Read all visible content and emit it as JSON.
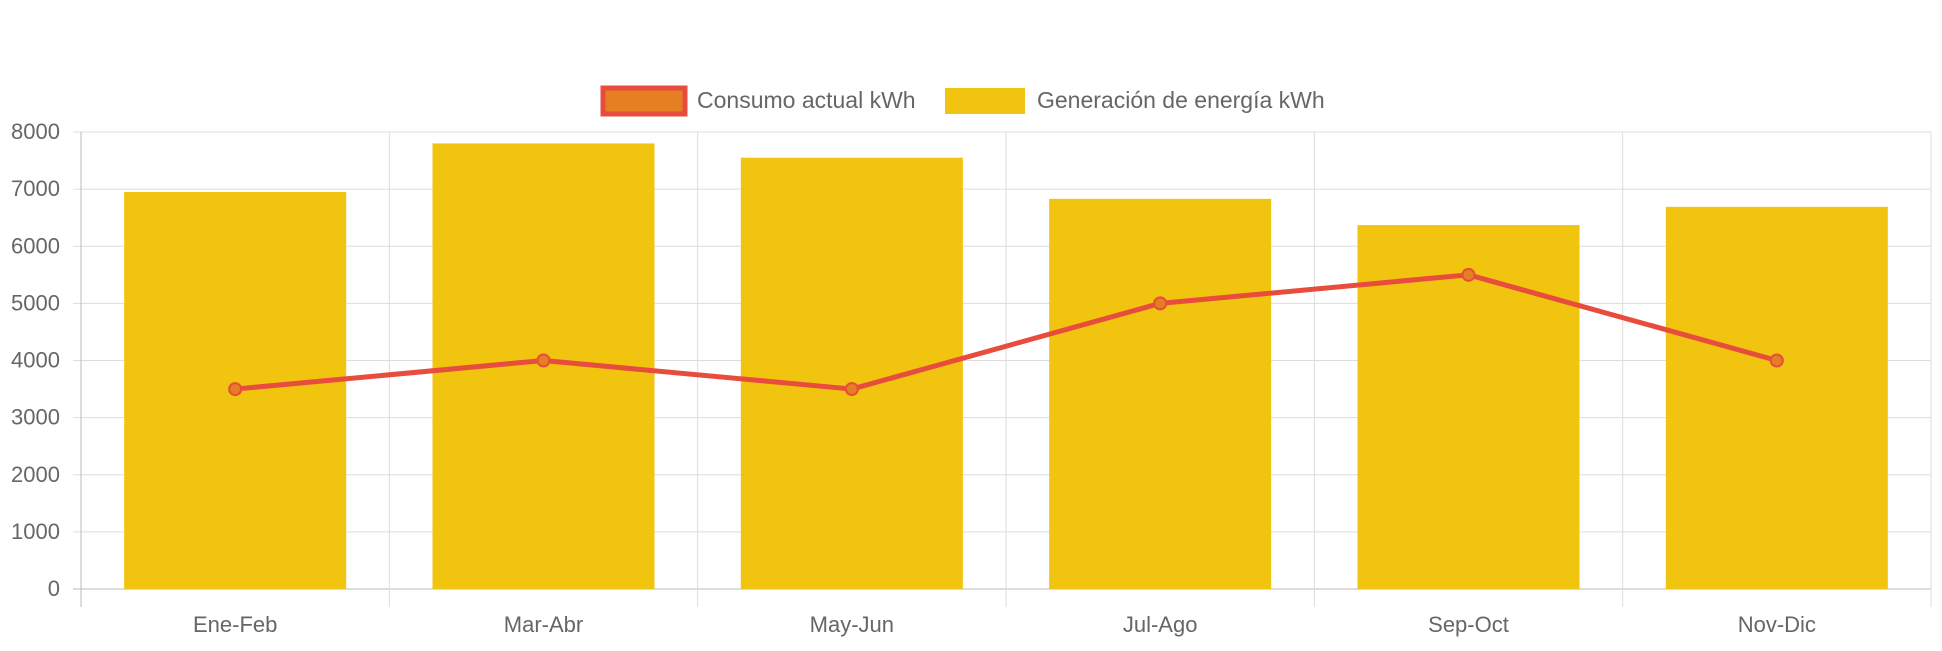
{
  "chart_data": {
    "type": "bar",
    "categories": [
      "Ene-Feb",
      "Mar-Abr",
      "May-Jun",
      "Jul-Ago",
      "Sep-Oct",
      "Nov-Dic"
    ],
    "series": [
      {
        "name": "Consumo actual kWh",
        "type": "line",
        "values": [
          3500,
          4000,
          3500,
          5000,
          5500,
          4000
        ],
        "color": "#e74c3c",
        "fill_color": "#e67e22"
      },
      {
        "name": "Generación de energía kWh",
        "type": "bar",
        "values": [
          6950,
          7800,
          7550,
          6830,
          6370,
          6690
        ],
        "color": "#f1c40f"
      }
    ],
    "ylim": [
      0,
      8000
    ],
    "yticks": [
      0,
      1000,
      2000,
      3000,
      4000,
      5000,
      6000,
      7000,
      8000
    ],
    "grid": true,
    "legend_position": "top-center",
    "title": "",
    "xlabel": "",
    "ylabel": ""
  },
  "colors": {
    "grid": "#dddddd",
    "axis": "#bbbbbb",
    "tick_text": "#666666",
    "legend_text": "#666666"
  }
}
